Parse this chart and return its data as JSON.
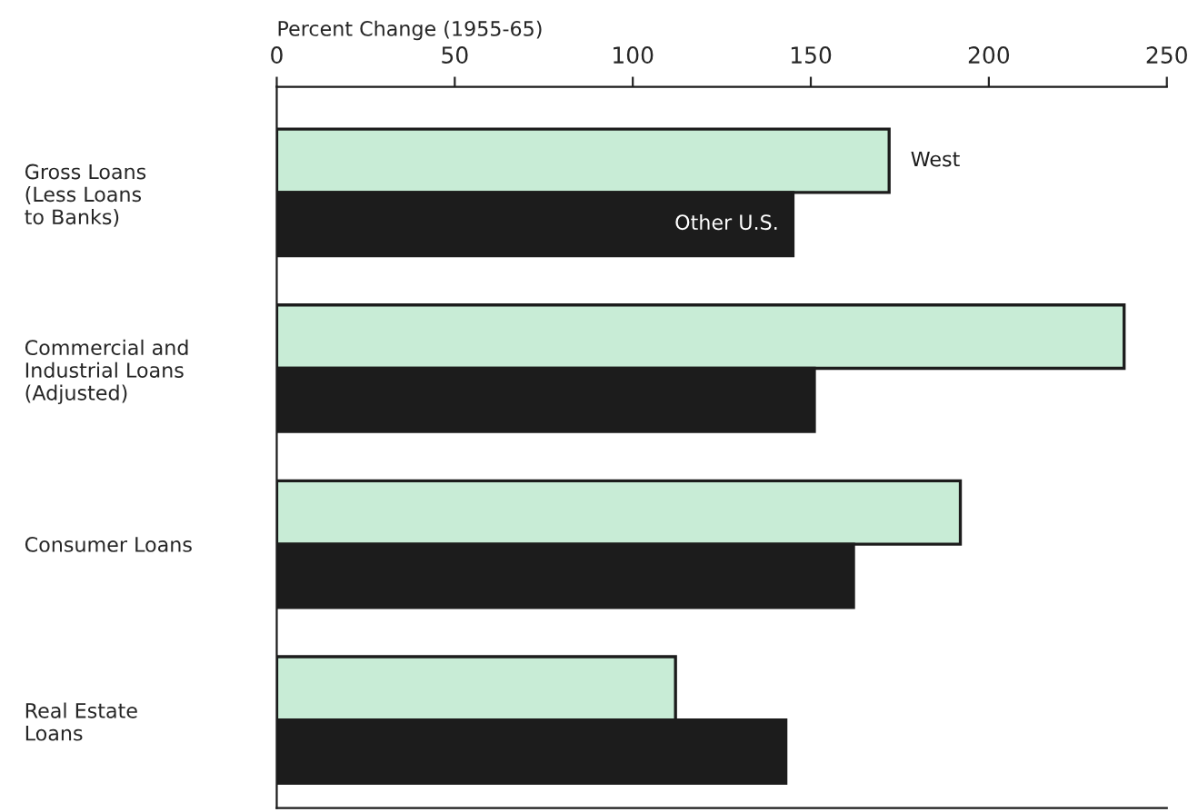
{
  "chart_data": {
    "type": "bar",
    "orientation": "horizontal",
    "xlabel": "Percent Change (1955-65)",
    "categories": [
      "Gross Loans\n(Less Loans\nto Banks)",
      "Commercial and\nIndustrial Loans\n(Adjusted)",
      "Consumer Loans",
      "Real Estate\nLoans"
    ],
    "series": [
      {
        "name": "West",
        "color": "#c8ecd6",
        "values": [
          172,
          238,
          192,
          112
        ]
      },
      {
        "name": "Other U.S.",
        "color": "#1c1c1c",
        "values": [
          145,
          151,
          162,
          143
        ]
      }
    ],
    "xlim": [
      0,
      250
    ],
    "xticks": [
      0,
      50,
      100,
      150,
      200,
      250
    ],
    "grid": false,
    "legend": false
  }
}
